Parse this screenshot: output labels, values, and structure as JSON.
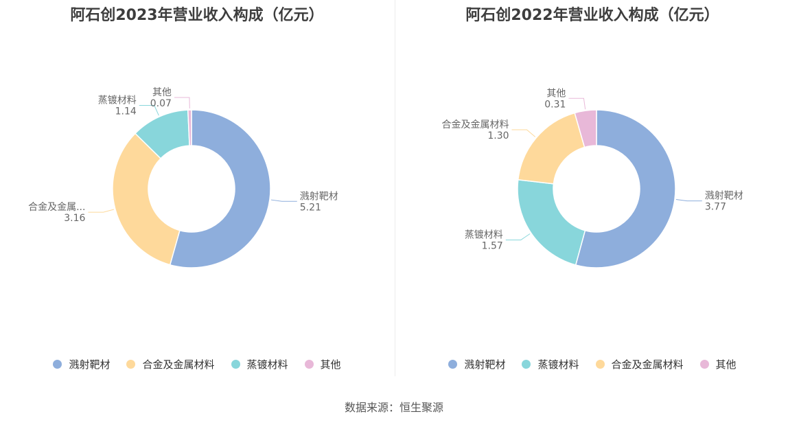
{
  "colors": {
    "溅射靶材": "#8eaedc",
    "合金及金属材料": "#fed99b",
    "蒸镀材料": "#88d6db",
    "其他": "#e8b8d8"
  },
  "source": "数据来源：恒生聚源",
  "chart_data": [
    {
      "type": "pie",
      "title": "阿石创2023年营业收入构成（亿元）",
      "legend_placement": "bottom",
      "legend": [
        "溅射靶材",
        "合金及金属材料",
        "蒸镀材料",
        "其他"
      ],
      "slices": [
        {
          "name": "溅射靶材",
          "value": 5.21,
          "label_name": "溅射靶材",
          "label_value": "5.21"
        },
        {
          "name": "合金及金属材料",
          "value": 3.16,
          "label_name": "合金及金属...",
          "label_value": "3.16"
        },
        {
          "name": "蒸镀材料",
          "value": 1.14,
          "label_name": "蒸镀材料",
          "label_value": "1.14"
        },
        {
          "name": "其他",
          "value": 0.07,
          "label_name": "其他",
          "label_value": "0.07"
        }
      ]
    },
    {
      "type": "pie",
      "title": "阿石创2022年营业收入构成（亿元）",
      "legend_placement": "bottom",
      "legend": [
        "溅射靶材",
        "蒸镀材料",
        "合金及金属材料",
        "其他"
      ],
      "slices": [
        {
          "name": "溅射靶材",
          "value": 3.77,
          "label_name": "溅射靶材",
          "label_value": "3.77"
        },
        {
          "name": "蒸镀材料",
          "value": 1.57,
          "label_name": "蒸镀材料",
          "label_value": "1.57"
        },
        {
          "name": "合金及金属材料",
          "value": 1.3,
          "label_name": "合金及金属材料",
          "label_value": "1.30"
        },
        {
          "name": "其他",
          "value": 0.31,
          "label_name": "其他",
          "label_value": "0.31"
        }
      ]
    }
  ]
}
